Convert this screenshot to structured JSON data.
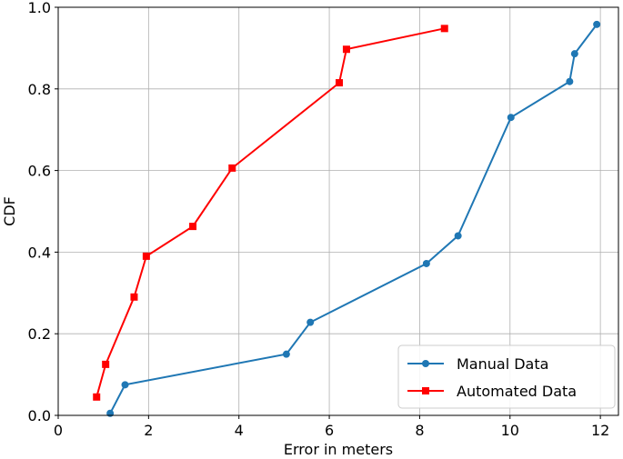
{
  "chart_data": {
    "type": "line",
    "title": "",
    "xlabel": "Error in meters",
    "ylabel": "CDF",
    "xlim": [
      0,
      12.4
    ],
    "ylim": [
      0.0,
      1.0
    ],
    "xticks": [
      0,
      2,
      4,
      6,
      8,
      10,
      12
    ],
    "yticks": [
      0.0,
      0.2,
      0.4,
      0.6,
      0.8,
      1.0
    ],
    "xtick_labels": [
      "0",
      "2",
      "4",
      "6",
      "8",
      "10",
      "12"
    ],
    "ytick_labels": [
      "0.0",
      "0.2",
      "0.4",
      "0.6",
      "0.8",
      "1.0"
    ],
    "grid": true,
    "legend_position": "bottom-right",
    "series": [
      {
        "name": "Manual Data",
        "color": "#1f77b4",
        "marker": "circle",
        "x": [
          1.15,
          1.48,
          5.05,
          5.58,
          8.15,
          8.85,
          10.02,
          11.32,
          11.43,
          11.92
        ],
        "y": [
          0.005,
          0.075,
          0.15,
          0.228,
          0.372,
          0.44,
          0.73,
          0.818,
          0.886,
          0.958
        ]
      },
      {
        "name": "Automated Data",
        "color": "#ff0000",
        "marker": "square",
        "x": [
          0.85,
          1.05,
          1.68,
          1.95,
          2.98,
          3.85,
          6.22,
          6.38,
          8.55
        ],
        "y": [
          0.045,
          0.125,
          0.29,
          0.39,
          0.463,
          0.606,
          0.815,
          0.897,
          0.948
        ]
      }
    ]
  }
}
